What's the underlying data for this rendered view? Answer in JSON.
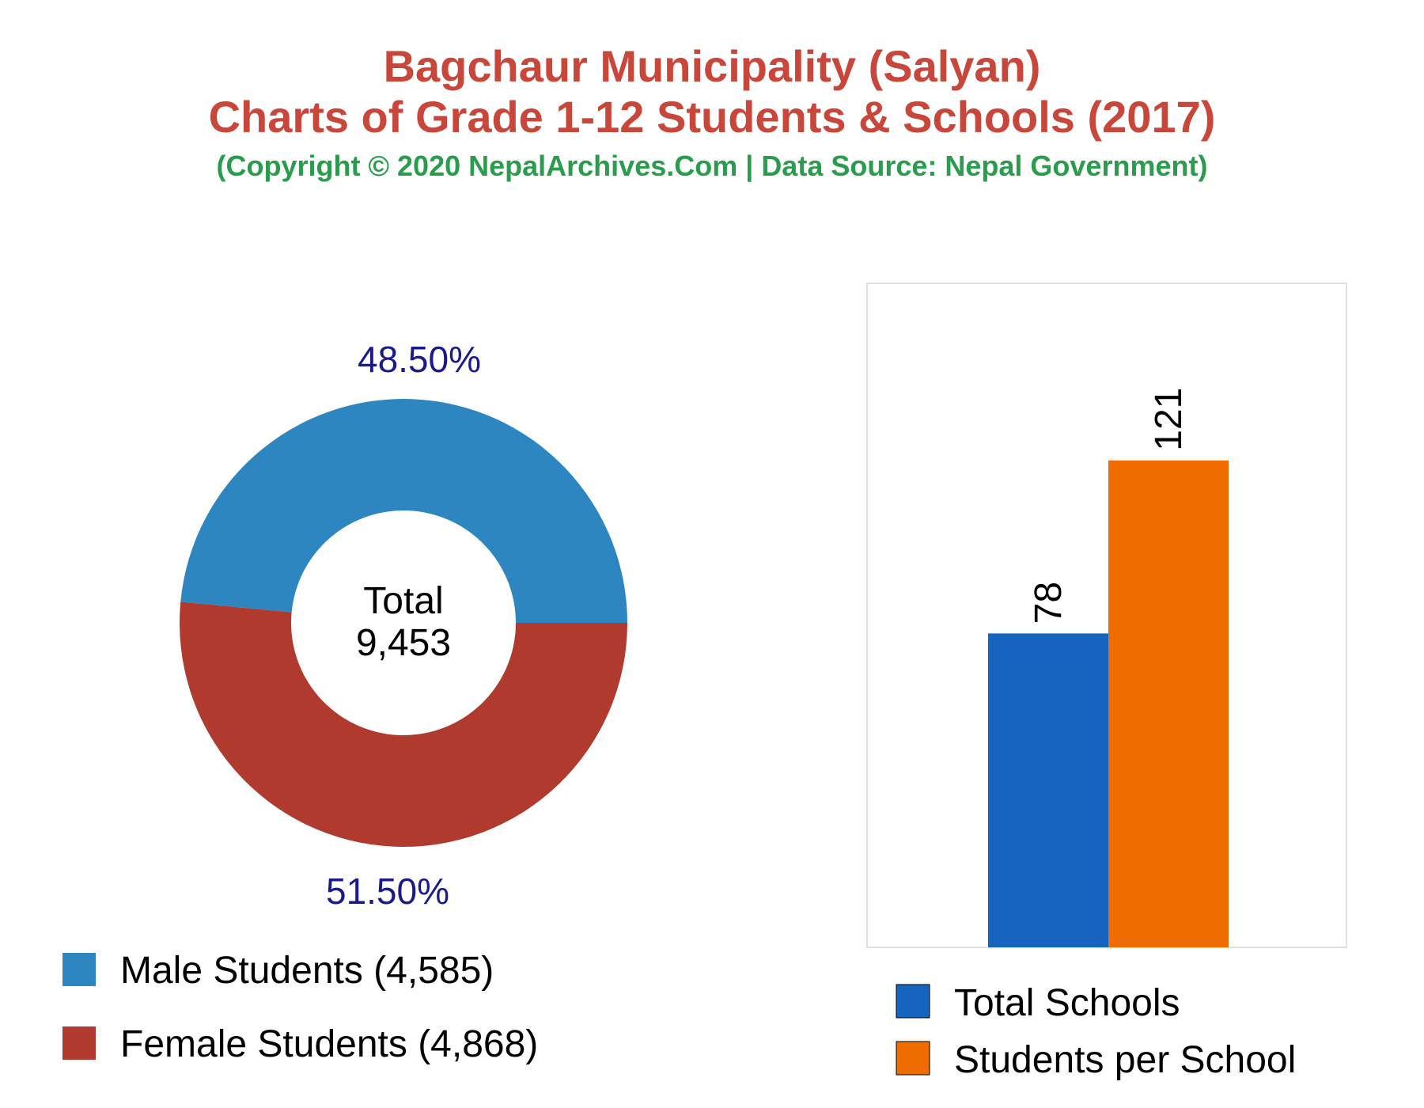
{
  "header": {
    "title_line1": "Bagchaur Municipality (Salyan)",
    "title_line2": "Charts of Grade 1-12 Students & Schools (2017)",
    "subtitle": "(Copyright © 2020 NepalArchives.Com | Data Source: Nepal Government)"
  },
  "colors": {
    "title": "#c9473a",
    "subtitle": "#2a9d4c",
    "percent_label": "#1a1a8c",
    "male": "#2e86c1",
    "female": "#b03a2e",
    "schools": "#1565c0",
    "students_per_school": "#ef6c00"
  },
  "chart_data": [
    {
      "type": "pie",
      "donut": true,
      "center_label": "Total",
      "center_value": "9,453",
      "slices": [
        {
          "key": "male",
          "label": "Male Students (4,585)",
          "value": 4585,
          "percent_label": "48.50%",
          "color": "#2e86c1"
        },
        {
          "key": "female",
          "label": "Female Students (4,868)",
          "value": 4868,
          "percent_label": "51.50%",
          "color": "#b03a2e"
        }
      ],
      "legend_position": "bottom-left"
    },
    {
      "type": "bar",
      "categories": [
        "Total Schools",
        "Students per School"
      ],
      "values": [
        78,
        121
      ],
      "value_labels": [
        "78",
        "121"
      ],
      "colors": [
        "#1565c0",
        "#ef6c00"
      ],
      "ylim": [
        0,
        165
      ],
      "grid": false,
      "legend": [
        "Total Schools",
        "Students per School"
      ],
      "legend_position": "bottom"
    }
  ]
}
